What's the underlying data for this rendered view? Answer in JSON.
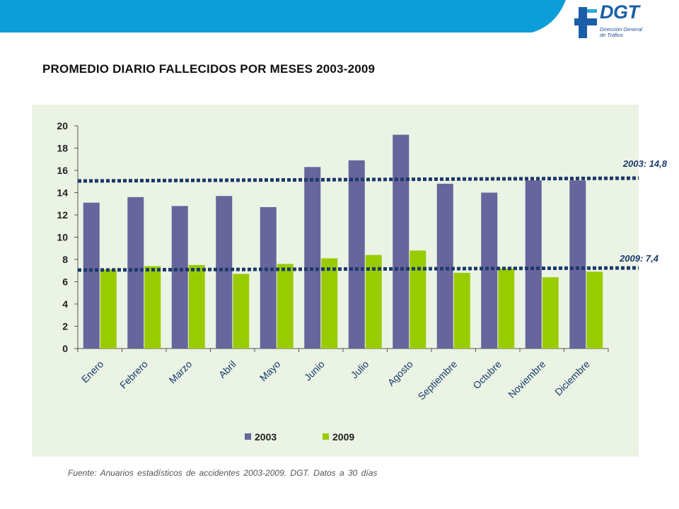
{
  "title": "PROMEDIO DIARIO FALLECIDOS POR MESES 2003-2009",
  "source_note": "Fuente:  Anuarios estadísticos de accidentes 2003-2009.  DGT.  Datos  a 30 días",
  "logo": {
    "name": "DGT",
    "subtitle_line1": "Dirección General",
    "subtitle_line2": "de Tráfico"
  },
  "colors": {
    "banner": "#0c9ed9",
    "series_2003": "#67659b",
    "series_2009": "#99cc00",
    "reference_line": "#1b3a6b",
    "chart_background": "#eaf3e4"
  },
  "chart_data": {
    "type": "bar",
    "title": "PROMEDIO DIARIO FALLECIDOS POR MESES 2003-2009",
    "categories": [
      "Enero",
      "Febrero",
      "Marzo",
      "Abril",
      "Mayo",
      "Junio",
      "Julio",
      "Agosto",
      "Septiembre",
      "Octubre",
      "Noviembre",
      "Diciembre"
    ],
    "series": [
      {
        "name": "2003",
        "color": "#67659b",
        "values": [
          13.1,
          13.6,
          12.8,
          13.7,
          12.7,
          16.3,
          16.9,
          19.2,
          14.8,
          14.0,
          15.1,
          15.1
        ]
      },
      {
        "name": "2009",
        "color": "#99cc00",
        "values": [
          7.1,
          7.4,
          7.5,
          6.7,
          7.6,
          8.1,
          8.4,
          8.8,
          6.8,
          7.2,
          6.4,
          6.9
        ]
      }
    ],
    "ylim": [
      0,
      20
    ],
    "yticks": [
      0,
      2,
      4,
      6,
      8,
      10,
      12,
      14,
      16,
      18,
      20
    ],
    "xlabel": "",
    "ylabel": "",
    "grid": false,
    "legend_position": "bottom",
    "reference_lines": [
      {
        "label": "2003: 14,8",
        "value": 14.8
      },
      {
        "label": "2009: 7,4",
        "value": 7.4
      }
    ]
  }
}
